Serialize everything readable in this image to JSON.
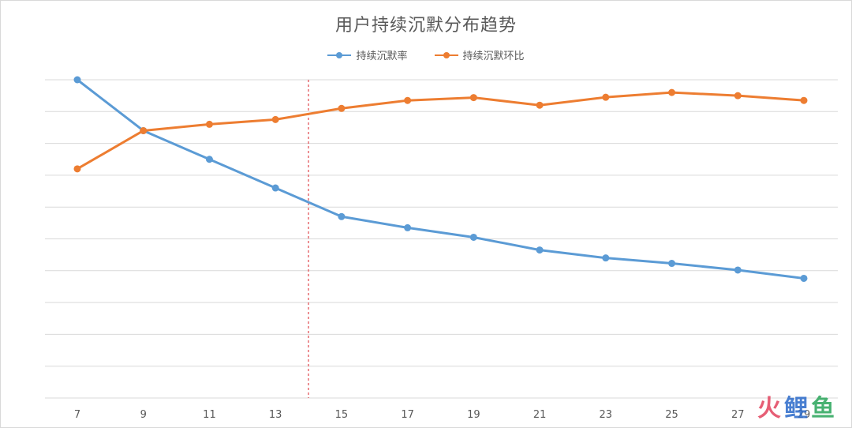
{
  "chart_data": {
    "type": "line",
    "title": "用户持续沉默分布趋势",
    "x": [
      7,
      9,
      11,
      13,
      15,
      17,
      19,
      21,
      23,
      25,
      27,
      29
    ],
    "series": [
      {
        "name": "持续沉默率",
        "color": "#5b9bd5",
        "values": [
          100,
          84,
          75,
          66,
          57,
          53.5,
          50.5,
          46.5,
          44,
          42.3,
          40.2,
          37.6
        ]
      },
      {
        "name": "持续沉默环比",
        "color": "#ed7d31",
        "values": [
          72,
          84,
          86,
          87.5,
          91,
          93.5,
          94.4,
          92,
          94.5,
          96,
          95,
          93.5
        ]
      }
    ],
    "ylim": [
      0,
      100
    ],
    "grid": true,
    "legend": "top-center",
    "reference_line": {
      "x": 14,
      "color": "#e0474c",
      "style": "dashed"
    }
  },
  "watermark": {
    "logo_glyph": "火",
    "chars": [
      "鲤",
      "鱼"
    ],
    "color": "#e2435d"
  }
}
